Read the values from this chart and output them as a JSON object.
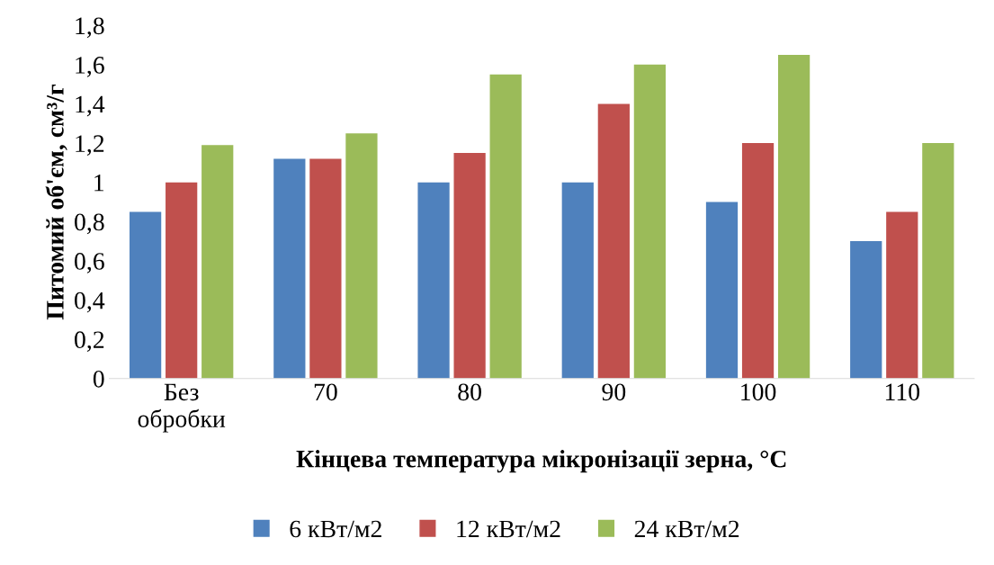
{
  "chart_data": {
    "type": "bar",
    "xlabel": "Кінцева температура мікронізації зерна, °C",
    "ylabel": "Питомий об'єм, см³/г",
    "categories": [
      "Без\nобробки",
      "70",
      "80",
      "90",
      "100",
      "110"
    ],
    "series": [
      {
        "name": "6 кВт/м2",
        "color": "#4f81bd",
        "values": [
          0.85,
          1.12,
          1.0,
          1.0,
          0.9,
          0.7
        ]
      },
      {
        "name": "12 кВт/м2",
        "color": "#c0504d",
        "values": [
          1.0,
          1.12,
          1.15,
          1.4,
          1.2,
          0.85
        ]
      },
      {
        "name": "24 кВт/м2",
        "color": "#9bbb59",
        "values": [
          1.19,
          1.25,
          1.55,
          1.6,
          1.65,
          1.2
        ]
      }
    ],
    "ylim": [
      0,
      1.8
    ],
    "yticks": [
      0,
      {
        "value": 0.2,
        "label": "0,2"
      },
      {
        "value": 0.4,
        "label": "0,4"
      },
      {
        "value": 0.6,
        "label": "0,6"
      },
      {
        "value": 0.8,
        "label": "0,8"
      },
      1,
      {
        "value": 1.2,
        "label": "1,2"
      },
      {
        "value": 1.4,
        "label": "1,4"
      },
      {
        "value": 1.6,
        "label": "1,6"
      },
      {
        "value": 1.8,
        "label": "1,8"
      }
    ],
    "legend": "bottom"
  }
}
